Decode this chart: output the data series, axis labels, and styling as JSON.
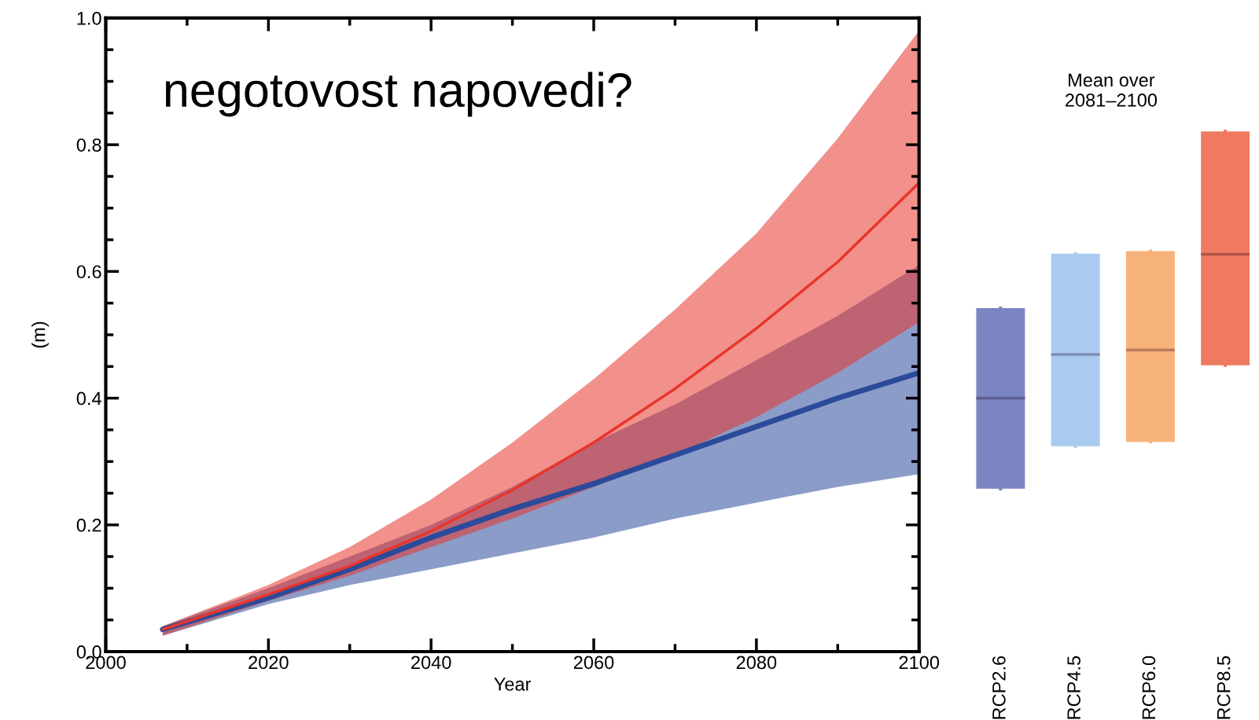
{
  "chart_data": [
    {
      "type": "line",
      "xlabel": "Year",
      "ylabel": "(m)",
      "xlim": [
        2000,
        2100
      ],
      "ylim": [
        0,
        1.0
      ],
      "xticks": [
        2000,
        {
          "value": 2010,
          "label": null
        },
        2020,
        {
          "value": 2030,
          "label": null
        },
        2040,
        {
          "value": 2050,
          "label": null
        },
        2060,
        {
          "value": 2070,
          "label": null
        },
        2080,
        {
          "value": 2090,
          "label": null
        },
        2100
      ],
      "yticks": [
        {
          "value": 0,
          "label": "0.0"
        },
        {
          "value": 0.05,
          "label": null
        },
        {
          "value": 0.1,
          "label": null
        },
        {
          "value": 0.15,
          "label": null
        },
        {
          "value": 0.2,
          "label": "0.2"
        },
        {
          "value": 0.25,
          "label": null
        },
        {
          "value": 0.3,
          "label": null
        },
        {
          "value": 0.35,
          "label": null
        },
        {
          "value": 0.4,
          "label": "0.4"
        },
        {
          "value": 0.45,
          "label": null
        },
        {
          "value": 0.5,
          "label": null
        },
        {
          "value": 0.55,
          "label": null
        },
        {
          "value": 0.6,
          "label": "0.6"
        },
        {
          "value": 0.65,
          "label": null
        },
        {
          "value": 0.7,
          "label": null
        },
        {
          "value": 0.75,
          "label": null
        },
        {
          "value": 0.8,
          "label": "0.8"
        },
        {
          "value": 0.85,
          "label": null
        },
        {
          "value": 0.9,
          "label": null
        },
        {
          "value": 0.95,
          "label": null
        },
        {
          "value": 1.0,
          "label": "1.0"
        }
      ],
      "x": [
        2007,
        2020,
        2030,
        2040,
        2050,
        2060,
        2070,
        2080,
        2090,
        2100
      ],
      "series": [
        {
          "color": "#2c4a9a",
          "values": [
            0.035,
            0.085,
            0.13,
            0.18,
            0.225,
            0.265,
            0.31,
            0.355,
            0.4,
            0.44
          ],
          "lower": [
            0.025,
            0.075,
            0.105,
            0.13,
            0.155,
            0.18,
            0.21,
            0.235,
            0.26,
            0.28
          ],
          "upper": [
            0.04,
            0.1,
            0.15,
            0.2,
            0.26,
            0.33,
            0.39,
            0.46,
            0.53,
            0.61
          ]
        },
        {
          "color": "#e8352b",
          "values": [
            0.035,
            0.09,
            0.135,
            0.19,
            0.255,
            0.33,
            0.415,
            0.51,
            0.615,
            0.74
          ],
          "lower": [
            0.025,
            0.08,
            0.12,
            0.165,
            0.21,
            0.26,
            0.31,
            0.37,
            0.44,
            0.52
          ],
          "upper": [
            0.04,
            0.105,
            0.165,
            0.24,
            0.33,
            0.43,
            0.54,
            0.66,
            0.81,
            0.98
          ]
        }
      ],
      "annotations": [
        "negotovost napovedi?"
      ],
      "grid": false
    },
    {
      "type": "box",
      "title": "Mean over\n2081–2100",
      "categories": [
        "RCP2.6",
        "RCP4.5",
        "RCP6.0",
        "RCP8.5"
      ],
      "ylim": [
        0,
        1.0
      ],
      "tick_labels": "x",
      "colors": [
        "#7a85c2",
        "#a9cbef",
        "#f7b27a",
        "#ef7a5f"
      ],
      "boxes": [
        {
          "low": 0.257,
          "q1": 0.257,
          "median": 0.4,
          "q3": 0.542,
          "high": 0.542
        },
        {
          "low": 0.324,
          "q1": 0.324,
          "median": 0.469,
          "q3": 0.628,
          "high": 0.628
        },
        {
          "low": 0.331,
          "q1": 0.331,
          "median": 0.476,
          "q3": 0.632,
          "high": 0.632
        },
        {
          "low": 0.452,
          "q1": 0.452,
          "median": 0.627,
          "q3": 0.821,
          "high": 0.821
        }
      ]
    }
  ]
}
